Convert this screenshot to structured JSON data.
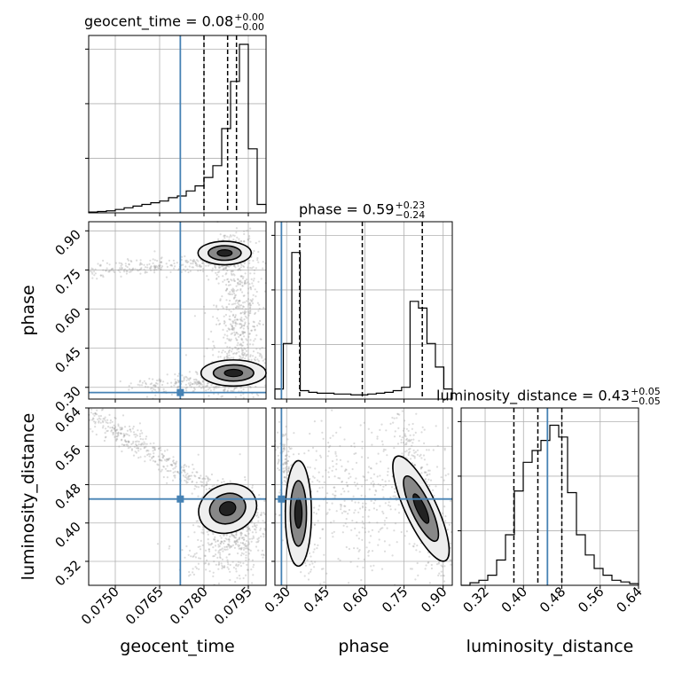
{
  "chart_data": {
    "type": "corner",
    "parameters": [
      "geocent_time",
      "phase",
      "luminosity_distance"
    ],
    "titles": [
      {
        "param": "geocent_time",
        "text": "geocent_time = 0.08",
        "plus": "+0.00",
        "minus": "−0.00"
      },
      {
        "param": "phase",
        "text": "phase = 0.59",
        "plus": "+0.23",
        "minus": "−0.24"
      },
      {
        "param": "luminosity_distance",
        "text": "luminosity_distance = 0.43",
        "plus": "+0.05",
        "minus": "−0.05"
      }
    ],
    "axes": {
      "geocent_time": {
        "range": [
          0.0741,
          0.0801
        ],
        "ticks": [
          "0.0750",
          "0.0765",
          "0.0780",
          "0.0795"
        ],
        "tick_values": [
          0.075,
          0.0765,
          0.078,
          0.0795
        ],
        "label": "geocent_time"
      },
      "phase": {
        "range": [
          0.255,
          0.935
        ],
        "ticks": [
          "0.30",
          "0.45",
          "0.60",
          "0.75",
          "0.90"
        ],
        "tick_values": [
          0.3,
          0.45,
          0.6,
          0.75,
          0.9
        ],
        "label": "phase"
      },
      "luminosity_distance": {
        "range": [
          0.27,
          0.64
        ],
        "ticks": [
          "0.32",
          "0.40",
          "0.48",
          "0.56",
          "0.64"
        ],
        "tick_values": [
          0.32,
          0.4,
          0.48,
          0.56,
          0.64
        ],
        "label": "luminosity_distance"
      }
    },
    "truths": {
      "geocent_time": 0.0772,
      "phase": 0.28,
      "luminosity_distance": 0.45
    },
    "quantiles": {
      "geocent_time": [
        0.078,
        0.0788,
        0.0791
      ],
      "phase": [
        0.35,
        0.59,
        0.82
      ],
      "luminosity_distance": [
        0.38,
        0.43,
        0.48
      ]
    },
    "histograms": {
      "geocent_time": [
        0.005,
        0.008,
        0.012,
        0.02,
        0.03,
        0.04,
        0.05,
        0.06,
        0.07,
        0.09,
        0.1,
        0.13,
        0.16,
        0.21,
        0.28,
        0.5,
        0.78,
        1.0,
        0.38,
        0.05
      ],
      "phase": [
        0.06,
        0.33,
        0.87,
        0.05,
        0.04,
        0.035,
        0.035,
        0.03,
        0.03,
        0.025,
        0.025,
        0.03,
        0.035,
        0.04,
        0.05,
        0.07,
        0.58,
        0.54,
        0.33,
        0.19,
        0.06
      ],
      "luminosity_distance": [
        0.0,
        0.015,
        0.03,
        0.06,
        0.15,
        0.3,
        0.56,
        0.73,
        0.8,
        0.86,
        0.95,
        0.88,
        0.55,
        0.3,
        0.18,
        0.1,
        0.06,
        0.03,
        0.02,
        0.01
      ]
    },
    "hist_ticks_y": 3,
    "grid": true,
    "colors": {
      "truth": "#4682b4",
      "contour": "#000000",
      "fill_dark": "#222222",
      "fill_mid": "#888888",
      "fill_light": "#eeeeee",
      "scatter": "#9a9a9a"
    }
  }
}
